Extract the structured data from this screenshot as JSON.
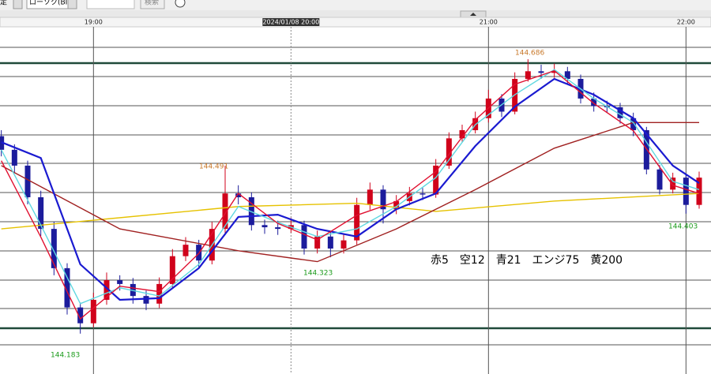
{
  "toolbar": {
    "left_text": "定",
    "chart_kind": "ローソク(BID)",
    "search_button": "検索"
  },
  "chart_data": {
    "type": "candlestick",
    "legend_text": "赤5　空12　青21　エンジ75　黄200",
    "xlim": [
      -0.1,
      53.9
    ],
    "ylim": [
      144.109,
      144.744
    ],
    "xticks": [
      {
        "value": 7,
        "label": "19:00"
      },
      {
        "value": 37,
        "label": "21:00"
      },
      {
        "value": 52,
        "label": "22:00"
      }
    ],
    "cursor": {
      "value": 22,
      "label": "2024/01/08 20:00"
    },
    "up_color": "#d0021b",
    "down_color": "#1c1c9c",
    "candles": {
      "open": [
        144.545,
        144.52,
        144.491,
        144.433,
        144.375,
        144.303,
        144.231,
        144.202,
        144.245,
        144.281,
        144.274,
        144.252,
        144.238,
        144.274,
        144.325,
        144.346,
        144.317,
        144.375,
        144.44,
        144.433,
        144.382,
        144.378,
        144.375,
        144.382,
        144.339,
        144.361,
        144.339,
        144.354,
        144.419,
        144.447,
        144.411,
        144.426,
        144.44,
        144.438,
        144.491,
        144.541,
        144.556,
        144.578,
        144.614,
        144.59,
        144.65,
        144.664,
        144.661,
        144.664,
        144.65,
        144.614,
        144.6,
        144.598,
        144.578,
        144.556,
        144.484,
        144.447,
        144.469,
        144.419
      ],
      "high": [
        144.556,
        144.53,
        144.5,
        144.445,
        144.388,
        144.312,
        144.24,
        144.258,
        144.295,
        144.29,
        144.285,
        144.262,
        144.286,
        144.338,
        144.36,
        144.355,
        144.388,
        144.491,
        144.455,
        144.442,
        144.392,
        144.39,
        144.395,
        144.39,
        144.372,
        144.37,
        144.366,
        144.432,
        144.46,
        144.455,
        144.437,
        144.452,
        144.45,
        144.503,
        144.552,
        144.566,
        144.59,
        144.63,
        144.622,
        144.662,
        144.686,
        144.676,
        144.678,
        144.672,
        144.658,
        144.625,
        144.61,
        144.606,
        144.588,
        144.562,
        144.492,
        144.478,
        144.475,
        144.48
      ],
      "low": [
        144.508,
        144.478,
        144.42,
        144.362,
        144.29,
        144.218,
        144.183,
        144.195,
        144.236,
        144.262,
        144.238,
        144.226,
        144.23,
        144.266,
        144.316,
        144.305,
        144.31,
        144.368,
        144.42,
        144.372,
        144.366,
        144.364,
        144.368,
        144.328,
        144.33,
        144.323,
        144.33,
        144.346,
        144.41,
        144.385,
        144.402,
        144.418,
        144.428,
        144.432,
        144.485,
        144.535,
        144.55,
        144.57,
        144.58,
        144.585,
        144.645,
        144.65,
        144.652,
        144.64,
        144.605,
        144.59,
        144.588,
        144.568,
        144.545,
        144.475,
        144.438,
        144.44,
        144.403,
        144.412
      ],
      "close": [
        144.52,
        144.491,
        144.433,
        144.375,
        144.303,
        144.231,
        144.202,
        144.245,
        144.281,
        144.274,
        144.252,
        144.238,
        144.274,
        144.325,
        144.346,
        144.317,
        144.375,
        144.44,
        144.433,
        144.382,
        144.378,
        144.375,
        144.382,
        144.339,
        144.361,
        144.339,
        144.354,
        144.419,
        144.447,
        144.411,
        144.426,
        144.44,
        144.438,
        144.491,
        144.541,
        144.556,
        144.578,
        144.614,
        144.59,
        144.65,
        144.664,
        144.661,
        144.664,
        144.65,
        144.614,
        144.6,
        144.598,
        144.578,
        144.556,
        144.484,
        144.447,
        144.469,
        144.419,
        144.469
      ]
    },
    "series": [
      {
        "name": "黄200",
        "color": "#e6c200",
        "x": [
          0,
          18,
          27,
          33,
          42,
          53
        ],
        "values": [
          144.375,
          144.416,
          144.422,
          144.407,
          144.426,
          144.44
        ]
      },
      {
        "name": "エンジ75",
        "color": "#a02020",
        "x": [
          0,
          9,
          18,
          24,
          30,
          36,
          42,
          48,
          53
        ],
        "values": [
          144.491,
          144.375,
          144.335,
          144.315,
          144.375,
          144.447,
          144.523,
          144.57,
          144.57
        ]
      },
      {
        "name": "青21",
        "color": "#1a1ad0",
        "x": [
          0,
          3,
          6,
          9,
          12,
          15,
          18,
          21,
          24,
          27,
          30,
          33,
          36,
          39,
          42,
          45,
          48,
          51,
          53
        ],
        "values": [
          144.534,
          144.505,
          144.31,
          144.245,
          144.248,
          144.303,
          144.397,
          144.401,
          144.375,
          144.361,
          144.411,
          144.44,
          144.527,
          144.599,
          144.65,
          144.621,
          144.578,
          144.491,
          144.459
        ]
      },
      {
        "name": "空12",
        "color": "#5fd8e0",
        "x": [
          0,
          3,
          6,
          9,
          12,
          15,
          18,
          21,
          24,
          27,
          30,
          33,
          36,
          39,
          42,
          45,
          48,
          51,
          53
        ],
        "values": [
          144.52,
          144.382,
          144.238,
          144.267,
          144.252,
          144.31,
          144.416,
          144.387,
          144.361,
          144.375,
          144.416,
          144.469,
          144.566,
          144.621,
          144.667,
          144.614,
          144.57,
          144.462,
          144.447
        ]
      },
      {
        "name": "赤5",
        "color": "#e01030",
        "x": [
          0,
          3,
          6,
          9,
          12,
          15,
          18,
          21,
          24,
          27,
          30,
          33,
          36,
          39,
          42,
          45,
          48,
          51,
          53
        ],
        "values": [
          144.5,
          144.36,
          144.21,
          144.27,
          144.26,
          144.33,
          144.44,
          144.385,
          144.355,
          144.4,
          144.425,
          144.48,
          144.575,
          144.64,
          144.665,
          144.605,
          144.555,
          144.455,
          144.44
        ]
      }
    ],
    "annotations": [
      "144.686",
      "144.491",
      "144.323",
      "144.183",
      "144.403"
    ]
  }
}
